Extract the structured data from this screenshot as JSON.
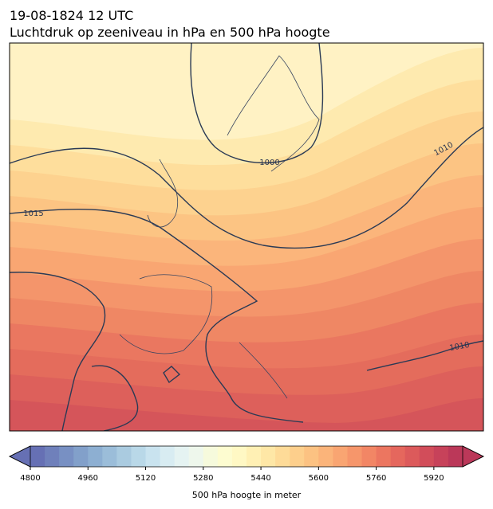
{
  "header": {
    "title": "19-08-1824 12 UTC",
    "subtitle": "Luchtdruk op zeeniveau in hPa en 500 hPa hoogte"
  },
  "isobar_labels": [
    "1000",
    "1010",
    "1015",
    "1010"
  ],
  "colorbar": {
    "label": "500 hPa hoogte in meter",
    "clim": [
      4800,
      6000
    ],
    "ticks": [
      4800,
      4960,
      5120,
      5280,
      5440,
      5600,
      5760,
      5920
    ],
    "colors": [
      "#6670b4",
      "#6f80bb",
      "#7890c3",
      "#82a0ca",
      "#8dafd2",
      "#9bbdd9",
      "#aacbe0",
      "#b9d8e8",
      "#c9e3ef",
      "#d8ecf2",
      "#e5f3f2",
      "#eef7ec",
      "#f6fadc",
      "#fdfcd0",
      "#fff8c4",
      "#fff0b4",
      "#fee7a6",
      "#fedb98",
      "#fdcf8c",
      "#fcc282",
      "#fbb47a",
      "#f9a572",
      "#f6966b",
      "#f28665",
      "#ec7660",
      "#e5675d",
      "#dc5a5b",
      "#d24d5a",
      "#c7425a",
      "#bb3859"
    ]
  }
}
